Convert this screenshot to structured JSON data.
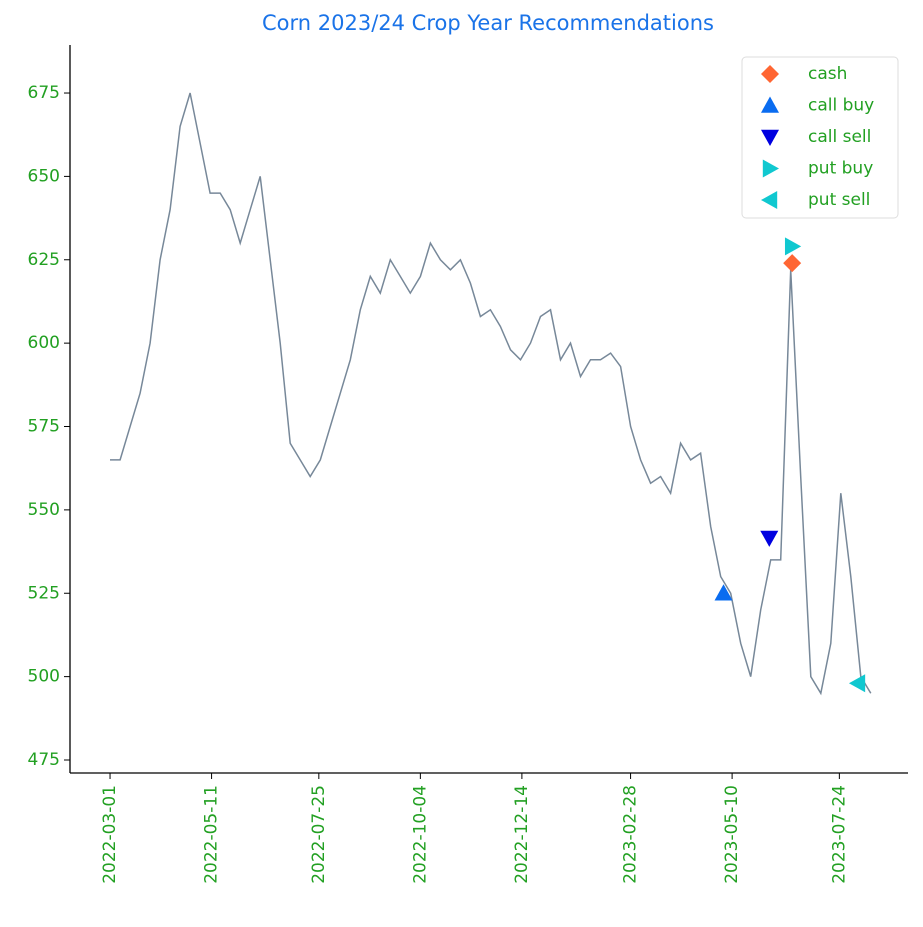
{
  "chart_data": {
    "type": "line",
    "title": "Corn 2023/24 Crop Year Recommendations",
    "xlim": [
      "2022-02-01",
      "2023-09-10"
    ],
    "xticks": [
      "2022-03-01",
      "2022-05-11",
      "2022-07-25",
      "2022-10-04",
      "2022-12-14",
      "2023-02-28",
      "2023-05-10",
      "2023-07-24"
    ],
    "ylim": [
      471.1,
      689.4
    ],
    "yticks": [
      475,
      500,
      525,
      550,
      575,
      600,
      625,
      650,
      675
    ],
    "legend": "upper right",
    "series": [
      {
        "color": "#778899",
        "marker": "none",
        "x": [
          "2022-03-01",
          "2022-03-08",
          "2022-03-15",
          "2022-03-22",
          "2022-03-29",
          "2022-04-05",
          "2022-04-12",
          "2022-04-19",
          "2022-04-26",
          "2022-05-03",
          "2022-05-10",
          "2022-05-17",
          "2022-05-24",
          "2022-05-31",
          "2022-06-07",
          "2022-06-14",
          "2022-06-21",
          "2022-06-28",
          "2022-07-05",
          "2022-07-12",
          "2022-07-19",
          "2022-07-26",
          "2022-08-02",
          "2022-08-09",
          "2022-08-16",
          "2022-08-23",
          "2022-08-30",
          "2022-09-06",
          "2022-09-13",
          "2022-09-20",
          "2022-09-27",
          "2022-10-04",
          "2022-10-11",
          "2022-10-18",
          "2022-10-25",
          "2022-11-01",
          "2022-11-08",
          "2022-11-15",
          "2022-11-22",
          "2022-11-29",
          "2022-12-06",
          "2022-12-13",
          "2022-12-20",
          "2022-12-27",
          "2023-01-03",
          "2023-01-10",
          "2023-01-17",
          "2023-01-24",
          "2023-01-31",
          "2023-02-07",
          "2023-02-14",
          "2023-02-21",
          "2023-02-28",
          "2023-03-07",
          "2023-03-14",
          "2023-03-21",
          "2023-03-28",
          "2023-04-04",
          "2023-04-11",
          "2023-04-18",
          "2023-04-25",
          "2023-05-02",
          "2023-05-09",
          "2023-05-16",
          "2023-05-23",
          "2023-05-30",
          "2023-06-06",
          "2023-06-13",
          "2023-06-20",
          "2023-06-27",
          "2023-07-04",
          "2023-07-11",
          "2023-07-18",
          "2023-07-25",
          "2023-08-01",
          "2023-08-08",
          "2023-08-15"
        ],
        "values": [
          565,
          565,
          575,
          585,
          600,
          625,
          640,
          665,
          675,
          660,
          645,
          645,
          640,
          630,
          640,
          650,
          625,
          600,
          570,
          565,
          560,
          565,
          575,
          585,
          595,
          610,
          620,
          615,
          625,
          620,
          615,
          620,
          630,
          625,
          622,
          625,
          618,
          608,
          610,
          605,
          598,
          595,
          600,
          608,
          610,
          595,
          600,
          590,
          595,
          595,
          597,
          593,
          575,
          565,
          558,
          560,
          555,
          570,
          565,
          567,
          545,
          530,
          525,
          510,
          500,
          520,
          535,
          535,
          622,
          560,
          500,
          495,
          510,
          555,
          530,
          500,
          495
        ]
      },
      {
        "name": "cash",
        "color": "#ff6633",
        "marker": "diamond",
        "x": [
          "2023-06-21"
        ],
        "values": [
          624
        ]
      },
      {
        "name": "call buy",
        "color": "#0a6cf0",
        "marker": "triangle-up",
        "x": [
          "2023-05-04"
        ],
        "values": [
          525
        ]
      },
      {
        "name": "call sell",
        "color": "#0000e0",
        "marker": "triangle-down",
        "x": [
          "2023-06-05"
        ],
        "values": [
          541.6
        ]
      },
      {
        "name": "put buy",
        "color": "#10c8d0",
        "marker": "triangle-right",
        "x": [
          "2023-06-21"
        ],
        "values": [
          629
        ]
      },
      {
        "name": "put sell",
        "color": "#10c8d0",
        "marker": "triangle-left",
        "x": [
          "2023-08-06"
        ],
        "values": [
          498
        ]
      }
    ]
  }
}
